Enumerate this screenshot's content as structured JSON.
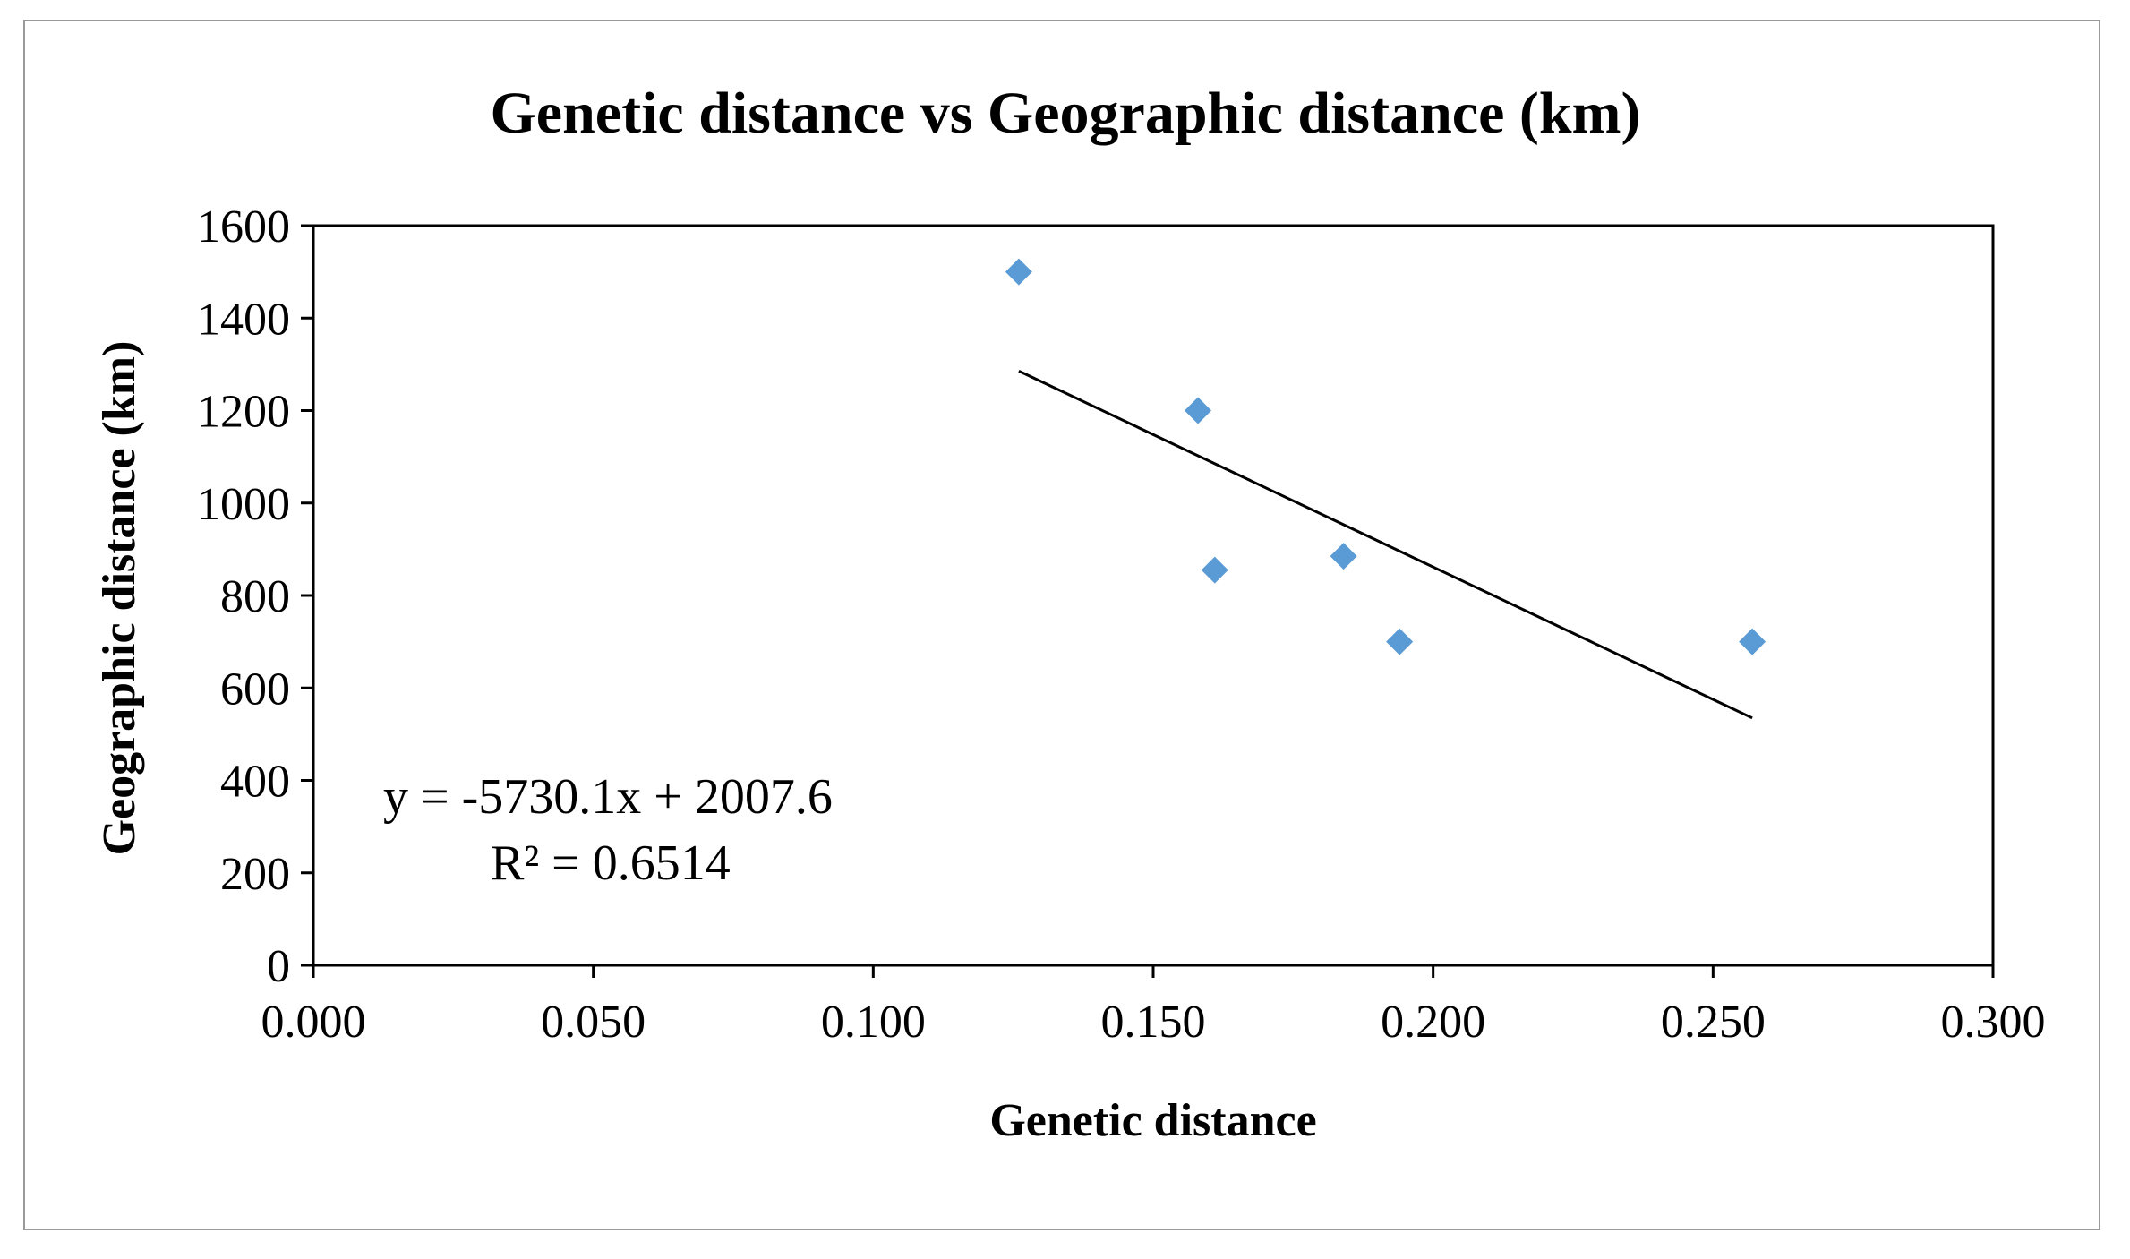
{
  "chart_data": {
    "type": "scatter",
    "title": "Genetic distance vs Geographic distance (km)",
    "xlabel": "Genetic distance",
    "ylabel": "Geographic distance (km)",
    "xlim": [
      0,
      0.3
    ],
    "ylim": [
      0,
      1600
    ],
    "x_ticks": [
      "0.000",
      "0.050",
      "0.100",
      "0.150",
      "0.200",
      "0.250",
      "0.300"
    ],
    "y_ticks": [
      "0",
      "200",
      "400",
      "600",
      "800",
      "1000",
      "1200",
      "1400",
      "1600"
    ],
    "grid": false,
    "legend": "none",
    "marker_color": "#5b9bd5",
    "trendline_color": "#000000",
    "points": [
      {
        "x": 0.126,
        "y": 1500
      },
      {
        "x": 0.158,
        "y": 1200
      },
      {
        "x": 0.161,
        "y": 855
      },
      {
        "x": 0.184,
        "y": 885
      },
      {
        "x": 0.194,
        "y": 700
      },
      {
        "x": 0.257,
        "y": 700
      }
    ],
    "trendline": {
      "slope": -5730.1,
      "intercept": 2007.6,
      "x_range": [
        0.126,
        0.257
      ],
      "equation_label": "y = -5730.1x + 2007.6",
      "r2_label": "R² = 0.6514"
    }
  }
}
